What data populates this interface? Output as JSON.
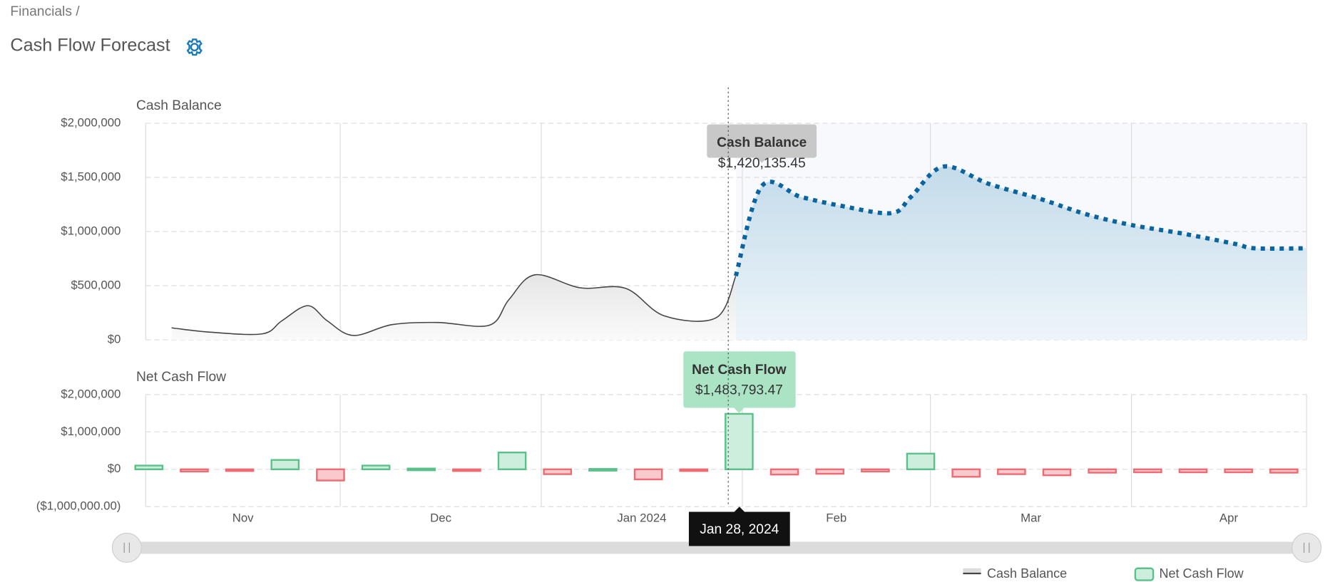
{
  "breadcrumb": "Financials /",
  "title": "Cash Flow Forecast",
  "crosshair": {
    "label": "Jan 28, 2024"
  },
  "chart_data": [
    {
      "type": "line",
      "title": "Cash Balance",
      "xlim": [
        "2023-11-01",
        "2024-04-28"
      ],
      "xticks": [
        "2023-11-01",
        "2023-12-01",
        "2024-01-01",
        "2024-02-01",
        "2024-03-01",
        "2024-04-01"
      ],
      "ylim": [
        0,
        2000000
      ],
      "yticks": [
        {
          "value": 0,
          "label": "$0"
        },
        {
          "value": 500000,
          "label": "$500,000"
        },
        {
          "value": 1000000,
          "label": "$1,000,000"
        },
        {
          "value": 1500000,
          "label": "$1,500,000"
        },
        {
          "value": 2000000,
          "label": "$2,000,000"
        }
      ],
      "grid": true,
      "forecast_from": "2024-01-31",
      "x": [
        "2023-11-05",
        "2023-11-11",
        "2023-11-19",
        "2023-11-22",
        "2023-11-26",
        "2023-11-29",
        "2023-12-03",
        "2023-12-09",
        "2023-12-16",
        "2023-12-24",
        "2023-12-27",
        "2023-12-31",
        "2024-01-07",
        "2024-01-14",
        "2024-01-20",
        "2024-01-28",
        "2024-01-31",
        "2024-02-04",
        "2024-02-10",
        "2024-02-16",
        "2024-02-24",
        "2024-02-27",
        "2024-03-03",
        "2024-03-10",
        "2024-03-18",
        "2024-03-25",
        "2024-04-01",
        "2024-04-09",
        "2024-04-17",
        "2024-04-20",
        "2024-04-28"
      ],
      "series": [
        {
          "name": "Cash Balance",
          "color": "#444444",
          "forecast_color": "#0a64a0",
          "values": [
            110000,
            70000,
            55000,
            175000,
            315000,
            175000,
            40000,
            140000,
            160000,
            135000,
            370000,
            600000,
            480000,
            475000,
            220000,
            205000,
            590000,
            1420135.45,
            1320000,
            1240000,
            1170000,
            1320000,
            1600000,
            1440000,
            1300000,
            1160000,
            1060000,
            980000,
            885000,
            845000,
            845000
          ],
          "value_labels": [
            null,
            null,
            null,
            null,
            null,
            null,
            null,
            null,
            null,
            null,
            null,
            null,
            null,
            null,
            null,
            null,
            null,
            "$1,420,135.45",
            null,
            null,
            null,
            null,
            null,
            null,
            null,
            null,
            null,
            null,
            null,
            null,
            null
          ]
        }
      ]
    },
    {
      "type": "bar",
      "title": "Net Cash Flow",
      "xlim": [
        "2023-11-01",
        "2024-04-28"
      ],
      "xticks": [
        {
          "value": "2023-11-01",
          "label": "Nov"
        },
        {
          "value": "2023-12-01",
          "label": "Dec"
        },
        {
          "value": "2024-01-01",
          "label": "Jan 2024"
        },
        {
          "value": "2024-02-01",
          "label": "Feb"
        },
        {
          "value": "2024-03-01",
          "label": "Mar"
        },
        {
          "value": "2024-04-01",
          "label": "Apr"
        }
      ],
      "ylim": [
        -1000000,
        2000000
      ],
      "yticks": [
        {
          "value": -1000000,
          "label": "($1,000,000.00)"
        },
        {
          "value": 0,
          "label": "$0"
        },
        {
          "value": 1000000,
          "label": "$1,000,000"
        },
        {
          "value": 2000000,
          "label": "$2,000,000"
        }
      ],
      "grid": true,
      "x": [
        "2023-10-29",
        "2023-11-05",
        "2023-11-12",
        "2023-11-19",
        "2023-11-26",
        "2023-12-03",
        "2023-12-10",
        "2023-12-17",
        "2023-12-24",
        "2023-12-31",
        "2024-01-07",
        "2024-01-14",
        "2024-01-21",
        "2024-01-28",
        "2024-02-04",
        "2024-02-11",
        "2024-02-18",
        "2024-02-25",
        "2024-03-03",
        "2024-03-10",
        "2024-03-17",
        "2024-03-24",
        "2024-03-31",
        "2024-04-07",
        "2024-04-14",
        "2024-04-21"
      ],
      "series": [
        {
          "name": "Net Cash Flow",
          "color": "#5cc08a",
          "positive_color": "#5cc08a",
          "positive_fill": "#cdeedd",
          "negative_color": "#ef6b73",
          "negative_fill": "#f9c9cd",
          "values": [
            100000,
            -60000,
            -30000,
            250000,
            -300000,
            100000,
            20000,
            -30000,
            450000,
            -130000,
            10000,
            -270000,
            -40000,
            1483793.47,
            -140000,
            -120000,
            -60000,
            420000,
            -200000,
            -130000,
            -160000,
            -90000,
            -80000,
            -80000,
            -80000,
            -90000
          ],
          "value_labels": [
            null,
            null,
            null,
            null,
            null,
            null,
            null,
            null,
            null,
            null,
            null,
            null,
            null,
            "$1,483,793.47",
            null,
            null,
            null,
            null,
            null,
            null,
            null,
            null,
            null,
            null,
            null,
            null
          ]
        }
      ]
    }
  ]
}
